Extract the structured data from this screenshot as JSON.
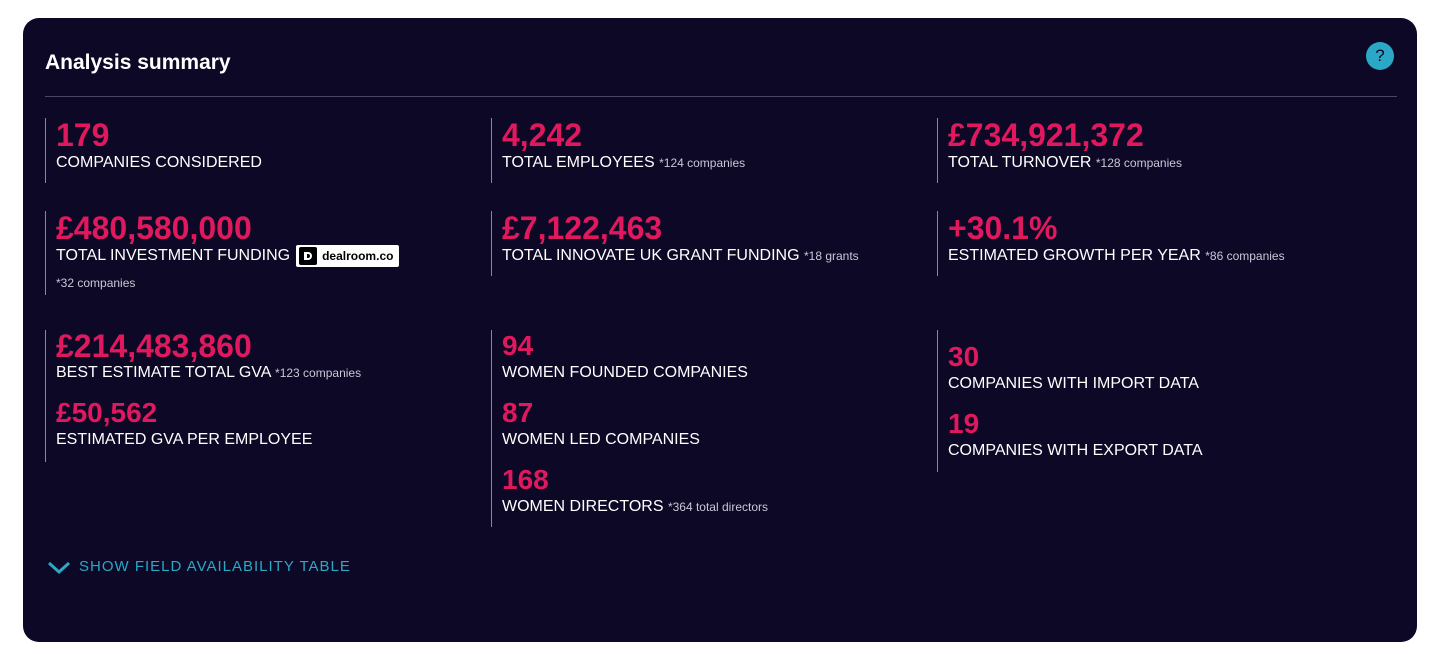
{
  "header": {
    "title": "Analysis summary",
    "help": "?"
  },
  "blocks": [
    {
      "items": [
        {
          "value": "179",
          "label": "COMPANIES CONSIDERED"
        }
      ]
    },
    {
      "items": [
        {
          "value": "4,242",
          "label": "TOTAL EMPLOYEES",
          "note": "*124 companies"
        }
      ]
    },
    {
      "items": [
        {
          "value": "£734,921,372",
          "label": "TOTAL TURNOVER",
          "note": "*128 companies"
        }
      ]
    },
    {
      "items": [
        {
          "value": "£480,580,000",
          "label": "TOTAL INVESTMENT FUNDING",
          "badge": "dealroom.co",
          "note": "*32 companies"
        }
      ]
    },
    {
      "items": [
        {
          "value": "£7,122,463",
          "label": "TOTAL INNOVATE UK GRANT FUNDING",
          "note": "*18 grants"
        }
      ]
    },
    {
      "items": [
        {
          "value": "+30.1%",
          "label": "ESTIMATED GROWTH PER YEAR",
          "note": "*86 companies"
        }
      ]
    },
    {
      "items": [
        {
          "value": "£214,483,860",
          "label": "BEST ESTIMATE TOTAL GVA",
          "note": "*123 companies"
        },
        {
          "value": "£50,562",
          "label": "ESTIMATED GVA PER EMPLOYEE"
        }
      ]
    },
    {
      "items": [
        {
          "value": "94",
          "label": "WOMEN FOUNDED COMPANIES"
        },
        {
          "value": "87",
          "label": "WOMEN LED COMPANIES"
        },
        {
          "value": "168",
          "label": "WOMEN DIRECTORS",
          "note": "*364 total directors"
        }
      ]
    },
    {
      "items": [
        {
          "value": "30",
          "label": "COMPANIES WITH IMPORT DATA"
        },
        {
          "value": "19",
          "label": "COMPANIES WITH EXPORT DATA"
        }
      ]
    }
  ],
  "footer": {
    "toggle": "SHOW FIELD AVAILABILITY TABLE"
  }
}
